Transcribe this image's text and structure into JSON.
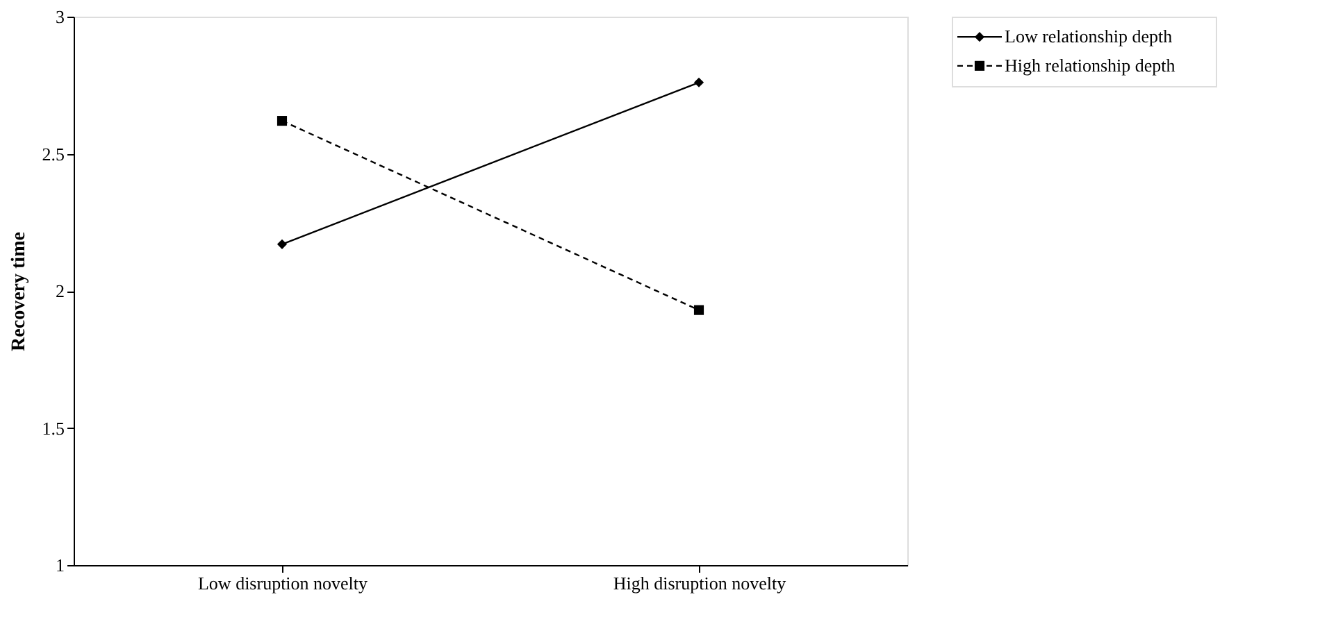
{
  "chart_data": {
    "type": "line",
    "ylabel": "Recovery time",
    "categories": [
      "Low disruption novelty",
      "High disruption novelty"
    ],
    "series": [
      {
        "name": "Low relationship depth",
        "color": "#000000",
        "values": [
          2.17,
          2.76
        ],
        "marker": "diamond",
        "line_style": "solid"
      },
      {
        "name": "High relationship depth",
        "color": "#000000",
        "values": [
          2.62,
          1.93
        ],
        "marker": "square",
        "line_style": "dashed"
      }
    ],
    "ylim": [
      1,
      3
    ],
    "yticks": [
      1,
      1.5,
      2,
      2.5,
      3
    ],
    "grid": false,
    "legend": "right"
  }
}
